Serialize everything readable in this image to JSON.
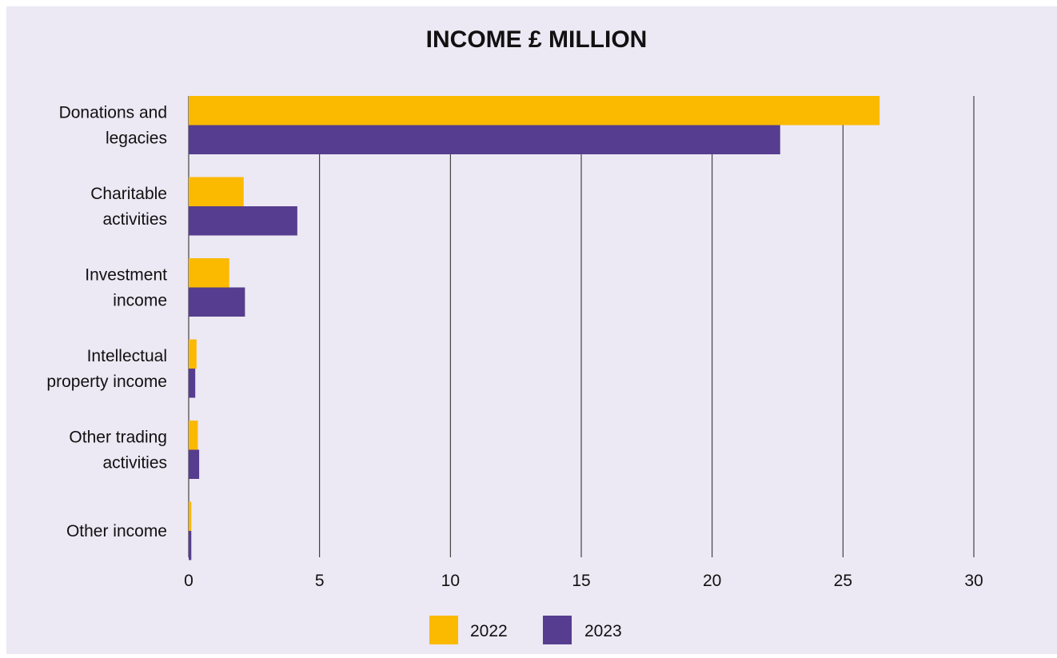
{
  "colors": {
    "background": "#ece8f4",
    "series_2022": "#fbb900",
    "series_2023": "#563d8f",
    "gridline": "#222222"
  },
  "chart_data": {
    "type": "bar",
    "orientation": "horizontal",
    "title": "INCOME £ MILLION",
    "categories": [
      [
        "Donations and",
        "legacies"
      ],
      [
        "Charitable",
        "activities"
      ],
      [
        "Investment",
        "income"
      ],
      [
        "Intellectual",
        "property income"
      ],
      [
        "Other trading",
        "activities"
      ],
      [
        "Other income"
      ]
    ],
    "series": [
      {
        "name": "2022",
        "color": "#fbb900",
        "values": [
          26.4,
          2.1,
          1.55,
          0.3,
          0.35,
          0.1
        ]
      },
      {
        "name": "2023",
        "color": "#563d8f",
        "values": [
          22.6,
          4.15,
          2.15,
          0.25,
          0.4,
          0.1
        ]
      }
    ],
    "xlim": [
      0,
      30
    ],
    "xticks": [
      "0",
      "5",
      "10",
      "15",
      "20",
      "25",
      "30"
    ],
    "grid": "vertical",
    "legend_position": "bottom-center"
  }
}
